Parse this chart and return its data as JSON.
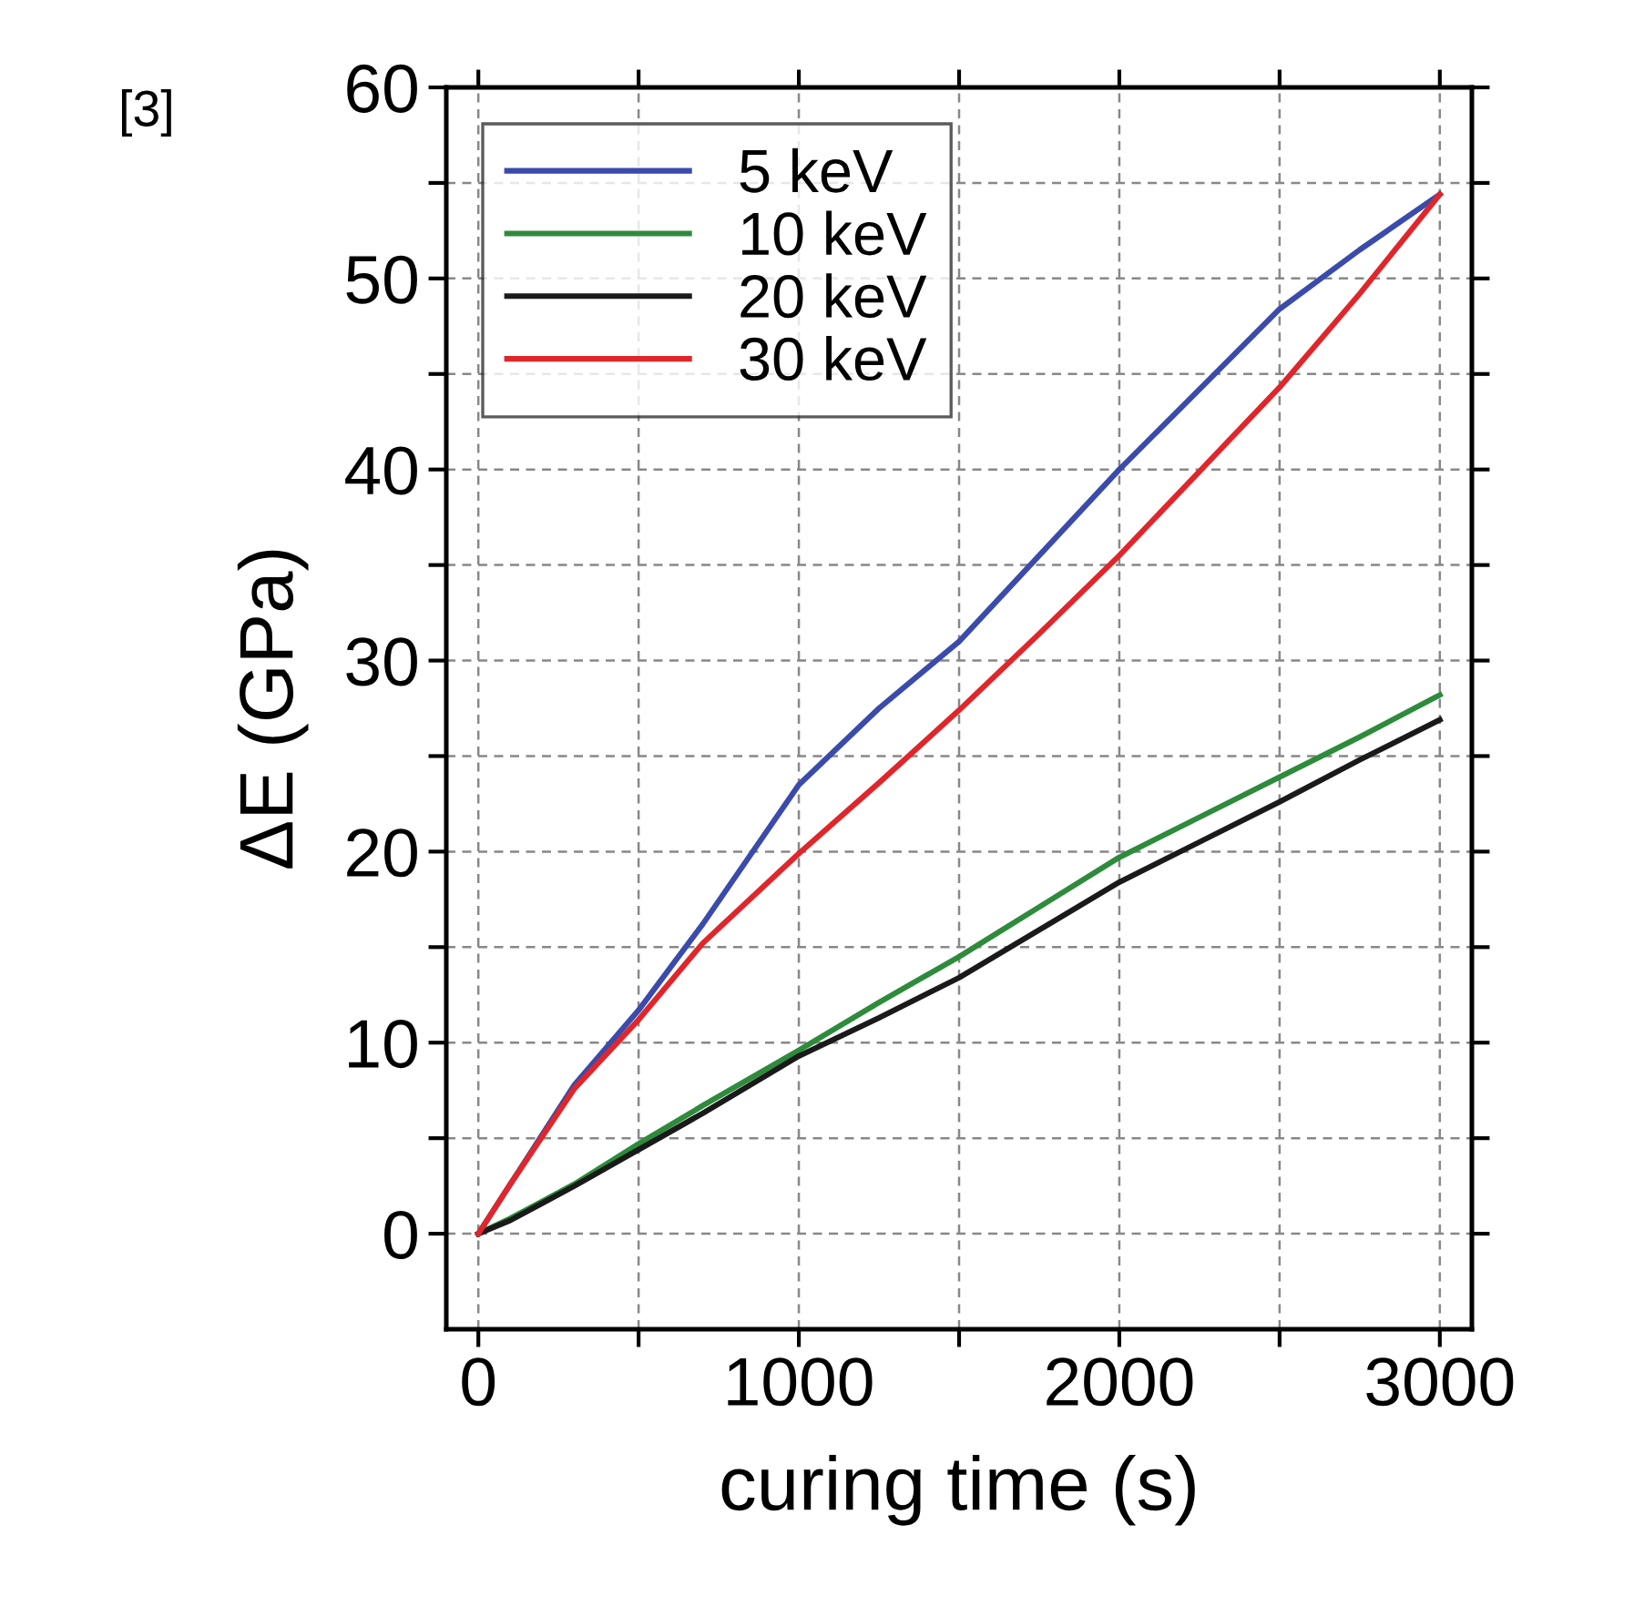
{
  "chart_data": {
    "type": "line",
    "xlabel": "curing time (s)",
    "ylabel": "ΔE (GPa)",
    "annotations": [
      "[3]"
    ],
    "x": [
      0,
      100,
      200,
      300,
      500,
      700,
      1000,
      1250,
      1500,
      1750,
      2000,
      2250,
      2500,
      2750,
      3000
    ],
    "series": [
      {
        "name": "5 keV",
        "color": "#3a4bab",
        "x": [
          0,
          200,
          300,
          500,
          700,
          1000,
          1250,
          1500,
          1750,
          2000,
          2250,
          2500,
          2750,
          3000
        ],
        "values": [
          0,
          5.2,
          7.8,
          11.7,
          16.2,
          23.5,
          27.5,
          31,
          35.5,
          40,
          44.2,
          48.4,
          51.5,
          54.4
        ]
      },
      {
        "name": "10 keV",
        "color": "#2e8b3c",
        "values": [
          0,
          0.8,
          1.7,
          2.6,
          4.7,
          6.7,
          9.6,
          12.1,
          14.5,
          17.1,
          19.7,
          21.8,
          23.9,
          26,
          28.2
        ]
      },
      {
        "name": "20 keV",
        "color": "#1a1a1a",
        "values": [
          0,
          0.7,
          1.6,
          2.5,
          4.4,
          6.3,
          9.3,
          11.3,
          13.4,
          15.9,
          18.4,
          20.5,
          22.6,
          24.8,
          26.9
        ]
      },
      {
        "name": "30 keV",
        "color": "#e0262b",
        "values": [
          0,
          2.6,
          5.1,
          7.6,
          11.2,
          15.2,
          19.9,
          23.6,
          27.4,
          31.4,
          35.5,
          39.9,
          44.3,
          49.2,
          54.4
        ]
      }
    ],
    "xlim": [
      -100,
      3100
    ],
    "ylim": [
      -5,
      60
    ],
    "xticks": [
      0,
      {
        "value": 500,
        "label": null
      },
      1000,
      {
        "value": 1500,
        "label": null
      },
      2000,
      {
        "value": 2500,
        "label": null
      },
      3000
    ],
    "yticks": [
      0,
      {
        "value": 5,
        "label": null
      },
      10,
      {
        "value": 15,
        "label": null
      },
      20,
      {
        "value": 25,
        "label": null
      },
      30,
      {
        "value": 35,
        "label": null
      },
      40,
      {
        "value": 45,
        "label": null
      },
      50,
      {
        "value": 55,
        "label": null
      },
      60
    ],
    "grid": true,
    "legend": "top left",
    "marker": "none",
    "line_style": "solid"
  }
}
